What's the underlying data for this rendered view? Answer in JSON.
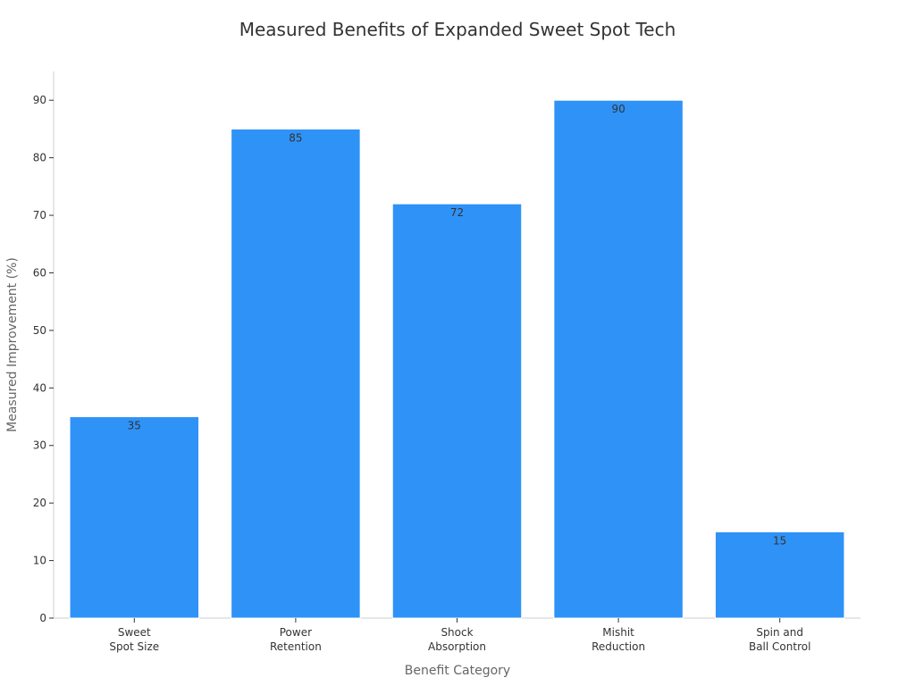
{
  "chart_data": {
    "type": "bar",
    "title": "Measured Benefits of Expanded Sweet Spot Tech",
    "xlabel": "Benefit Category",
    "ylabel": "Measured Improvement (%)",
    "categories": [
      [
        "Sweet",
        "Spot Size"
      ],
      [
        "Power",
        "Retention"
      ],
      [
        "Shock",
        "Absorption"
      ],
      [
        "Mishit",
        "Reduction"
      ],
      [
        "Spin and",
        "Ball Control"
      ]
    ],
    "values": [
      35,
      85,
      72,
      90,
      15
    ],
    "ylim": [
      0,
      95
    ],
    "yticks": [
      0,
      10,
      20,
      30,
      40,
      50,
      60,
      70,
      80,
      90
    ],
    "grid": false,
    "legend": "none",
    "bar_color": "#2f92f7",
    "bar_edge_color": "#ffffff"
  }
}
